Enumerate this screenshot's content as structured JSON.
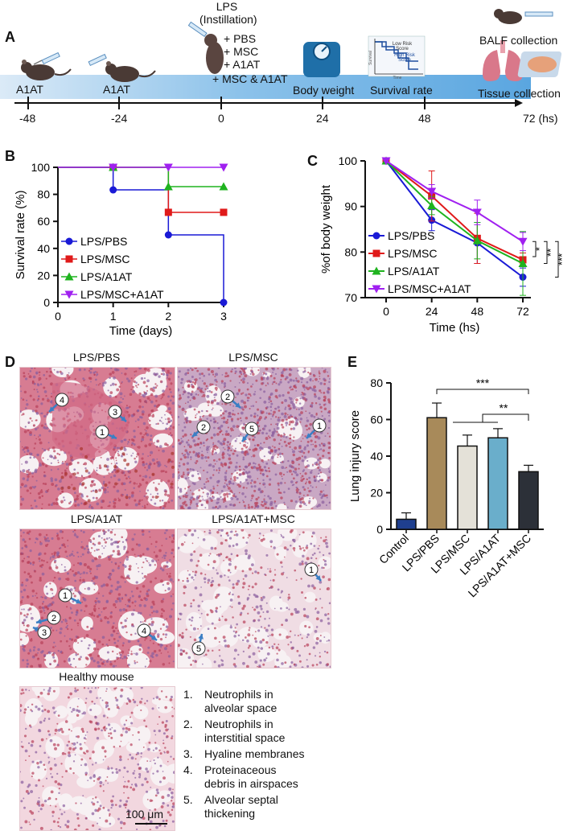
{
  "panels": {
    "A": "A",
    "B": "B",
    "C": "C",
    "D": "D",
    "E": "E"
  },
  "timeline": {
    "lps_lines": [
      "LPS",
      "(Instillation)",
      "+ PBS",
      "+ MSC",
      "+ A1AT",
      "+ MSC & A1AT"
    ],
    "events": [
      {
        "label": "A1AT",
        "tick": "-48"
      },
      {
        "label": "A1AT",
        "tick": "-24"
      },
      {
        "label": "",
        "tick": "0"
      },
      {
        "label": "Body weight",
        "tick": "24"
      },
      {
        "label": "Survival rate",
        "tick": "48"
      },
      {
        "label": "Tissue collection",
        "tick": "72 (hs)"
      }
    ],
    "balf": "BALF collection",
    "inset": {
      "low": "Low Risk",
      "score1": "Score",
      "high": "High Risk",
      "score2": "Score",
      "ylab": "Survival",
      "xlab": "Time"
    },
    "colors": {
      "bar_light": "#dbeaf7",
      "bar_dark": "#6fb1e3",
      "mouse": "#4a3a35",
      "scale": "#1f6fa8",
      "lung": "#d9788a",
      "tissue": "#e6a17a"
    }
  },
  "chart_data": [
    {
      "panel": "B",
      "type": "line",
      "step": true,
      "xlabel": "Time (days)",
      "ylabel": "Survival rate (%)",
      "xlim": [
        0,
        3
      ],
      "ylim": [
        0,
        100
      ],
      "xticks": [
        0,
        1,
        2,
        3
      ],
      "yticks": [
        0,
        20,
        40,
        60,
        80,
        100
      ],
      "series": [
        {
          "name": "LPS/PBS",
          "color": "#1a1ad6",
          "marker": "circle",
          "x": [
            0,
            1,
            2,
            3
          ],
          "values": [
            100,
            83.3,
            50,
            0
          ]
        },
        {
          "name": "LPS/MSC",
          "color": "#e01a1a",
          "marker": "square",
          "x": [
            0,
            1,
            2,
            3
          ],
          "values": [
            100,
            100,
            66.7,
            66.7
          ]
        },
        {
          "name": "LPS/A1AT",
          "color": "#1fb31f",
          "marker": "triangle",
          "x": [
            0,
            1,
            2,
            3
          ],
          "values": [
            100,
            100,
            85.7,
            85.7
          ]
        },
        {
          "name": "LPS/MSC+A1AT",
          "color": "#a020f0",
          "marker": "triangle-down",
          "x": [
            0,
            1,
            2,
            3
          ],
          "values": [
            100,
            100,
            100,
            100
          ]
        }
      ],
      "legend": "lower-left"
    },
    {
      "panel": "C",
      "type": "line",
      "xlabel": "Time (hs)",
      "ylabel": "%of body weight",
      "xlim": [
        0,
        72
      ],
      "ylim": [
        70,
        100
      ],
      "xticks": [
        0,
        24,
        48,
        72
      ],
      "yticks": [
        70,
        80,
        90,
        100
      ],
      "series": [
        {
          "name": "LPS/PBS",
          "color": "#1a1ad6",
          "marker": "circle",
          "x": [
            0,
            24,
            48,
            72
          ],
          "values": [
            100,
            87,
            82,
            74.5
          ],
          "err": [
            0,
            2.3,
            4.5,
            2
          ]
        },
        {
          "name": "LPS/MSC",
          "color": "#e01a1a",
          "marker": "square",
          "x": [
            0,
            24,
            48,
            72
          ],
          "values": [
            100,
            92.3,
            83,
            78.3
          ],
          "err": [
            0,
            5.5,
            5.5,
            1.5
          ]
        },
        {
          "name": "LPS/A1AT",
          "color": "#1fb31f",
          "marker": "triangle",
          "x": [
            0,
            24,
            48,
            72
          ],
          "values": [
            100,
            90.2,
            82.5,
            77.5
          ],
          "err": [
            0,
            2,
            4,
            7
          ]
        },
        {
          "name": "LPS/MSC+A1AT",
          "color": "#a020f0",
          "marker": "triangle-down",
          "x": [
            0,
            24,
            48,
            72
          ],
          "values": [
            100,
            93.3,
            88.7,
            82.3
          ],
          "err": [
            0,
            1.5,
            2.7,
            2
          ]
        }
      ],
      "significance": [
        "*",
        "**",
        "***"
      ],
      "legend": "lower-left"
    },
    {
      "panel": "E",
      "type": "bar",
      "ylabel": "Lung injury score",
      "ylim": [
        0,
        80
      ],
      "yticks": [
        0,
        20,
        40,
        60,
        80
      ],
      "categories": [
        "Control",
        "LPS/PBS",
        "LPS/MSC",
        "LPS/A1AT",
        "LPS/A1AT+MSC"
      ],
      "values": [
        5.5,
        61,
        45.5,
        50,
        31.5
      ],
      "err": [
        3.5,
        8,
        6,
        5,
        3.5
      ],
      "colors": [
        "#1f3f8f",
        "#a88a5a",
        "#e4e1d8",
        "#6aaecb",
        "#2c3038"
      ],
      "significance": [
        "***",
        "**"
      ]
    }
  ],
  "micrographs": {
    "titles": [
      "LPS/PBS",
      "LPS/MSC",
      "LPS/A1AT",
      "LPS/A1AT+MSC",
      "Healthy mouse"
    ],
    "scale_bar": "100 μm",
    "markers": [
      "1",
      "2",
      "3",
      "4",
      "5"
    ],
    "arrow_color": "#3b7fc4",
    "tissue_colors": {
      "lps": "#d77c92",
      "msc": "#c9a8c4",
      "healthy": "#e48aa5"
    }
  },
  "legend_items": [
    {
      "num": "1.",
      "text": "Neutrophils in\nalveolar space"
    },
    {
      "num": "2.",
      "text": "Neutrophils in\ninterstitial space"
    },
    {
      "num": "3.",
      "text": "Hyaline membranes"
    },
    {
      "num": "4.",
      "text": "Proteinaceous\ndebris in airspaces"
    },
    {
      "num": "5.",
      "text": "Alveolar septal\nthickening"
    }
  ]
}
